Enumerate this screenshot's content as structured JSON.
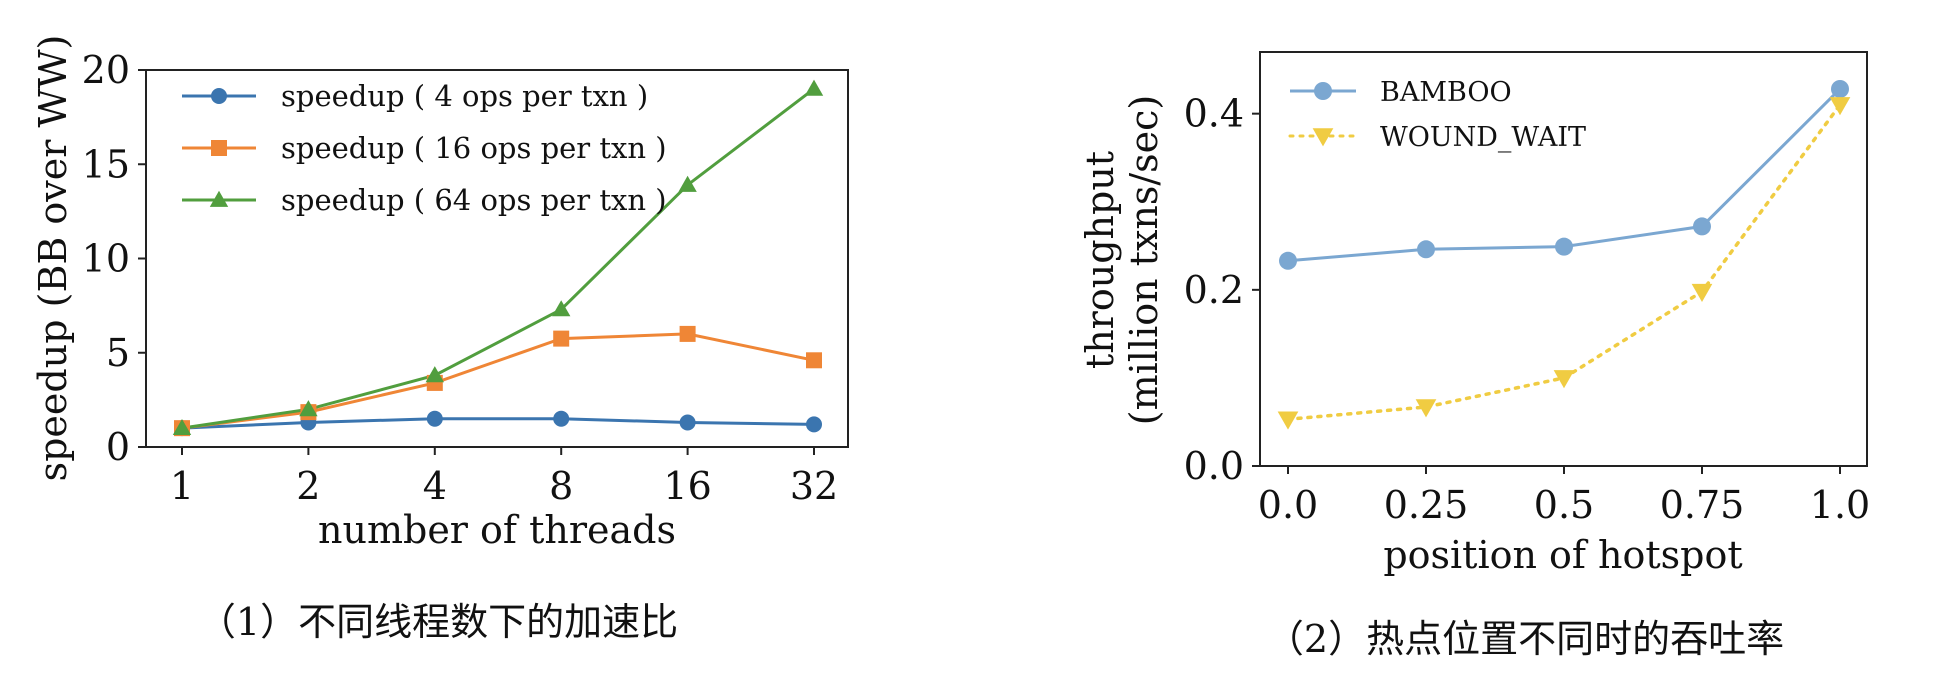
{
  "chart_data": [
    {
      "type": "line",
      "xlabel": "number of threads",
      "ylabel": "speedup (BB over WW)",
      "categories": [
        "1",
        "2",
        "4",
        "8",
        "16",
        "32"
      ],
      "ylim": [
        0,
        20
      ],
      "yticks": [
        "0",
        "5",
        "10",
        "15",
        "20"
      ],
      "legend_position": "upper-left",
      "series": [
        {
          "name": "speedup ( 4 ops per txn )",
          "values": [
            1.0,
            1.3,
            1.5,
            1.5,
            1.3,
            1.2
          ],
          "color": "#3b75af",
          "marker": "circle"
        },
        {
          "name": "speedup ( 16 ops per txn )",
          "values": [
            1.0,
            1.85,
            3.4,
            5.75,
            6.0,
            4.6
          ],
          "color": "#ef8636",
          "marker": "square"
        },
        {
          "name": "speedup ( 64 ops per txn )",
          "values": [
            1.0,
            2.0,
            3.8,
            7.3,
            13.9,
            19.0
          ],
          "color": "#519e3e",
          "marker": "triangle-up"
        }
      ],
      "caption": "（1）不同线程数下的加速比"
    },
    {
      "type": "line",
      "xlabel": "position of hotspot",
      "ylabel": "throughput (million txns/sec)",
      "ylabel_lines": [
        "throughput",
        "(million txns/sec)"
      ],
      "categories": [
        "0.0",
        "0.25",
        "0.5",
        "0.75",
        "1.0"
      ],
      "ylim": [
        0,
        0.47
      ],
      "yticks": [
        "0.0",
        "0.2",
        "0.4"
      ],
      "legend_position": "upper-left",
      "series": [
        {
          "name": "BAMBOO",
          "values": [
            0.233,
            0.246,
            0.249,
            0.272,
            0.428
          ],
          "color": "#7ba7d1",
          "marker": "circle",
          "linestyle": "solid"
        },
        {
          "name": "WOUND_WAIT",
          "values": [
            0.053,
            0.067,
            0.1,
            0.198,
            0.41
          ],
          "color": "#f0cc42",
          "marker": "triangle-down",
          "linestyle": "dotted"
        }
      ],
      "caption": "（2）热点位置不同时的吞吐率"
    }
  ]
}
